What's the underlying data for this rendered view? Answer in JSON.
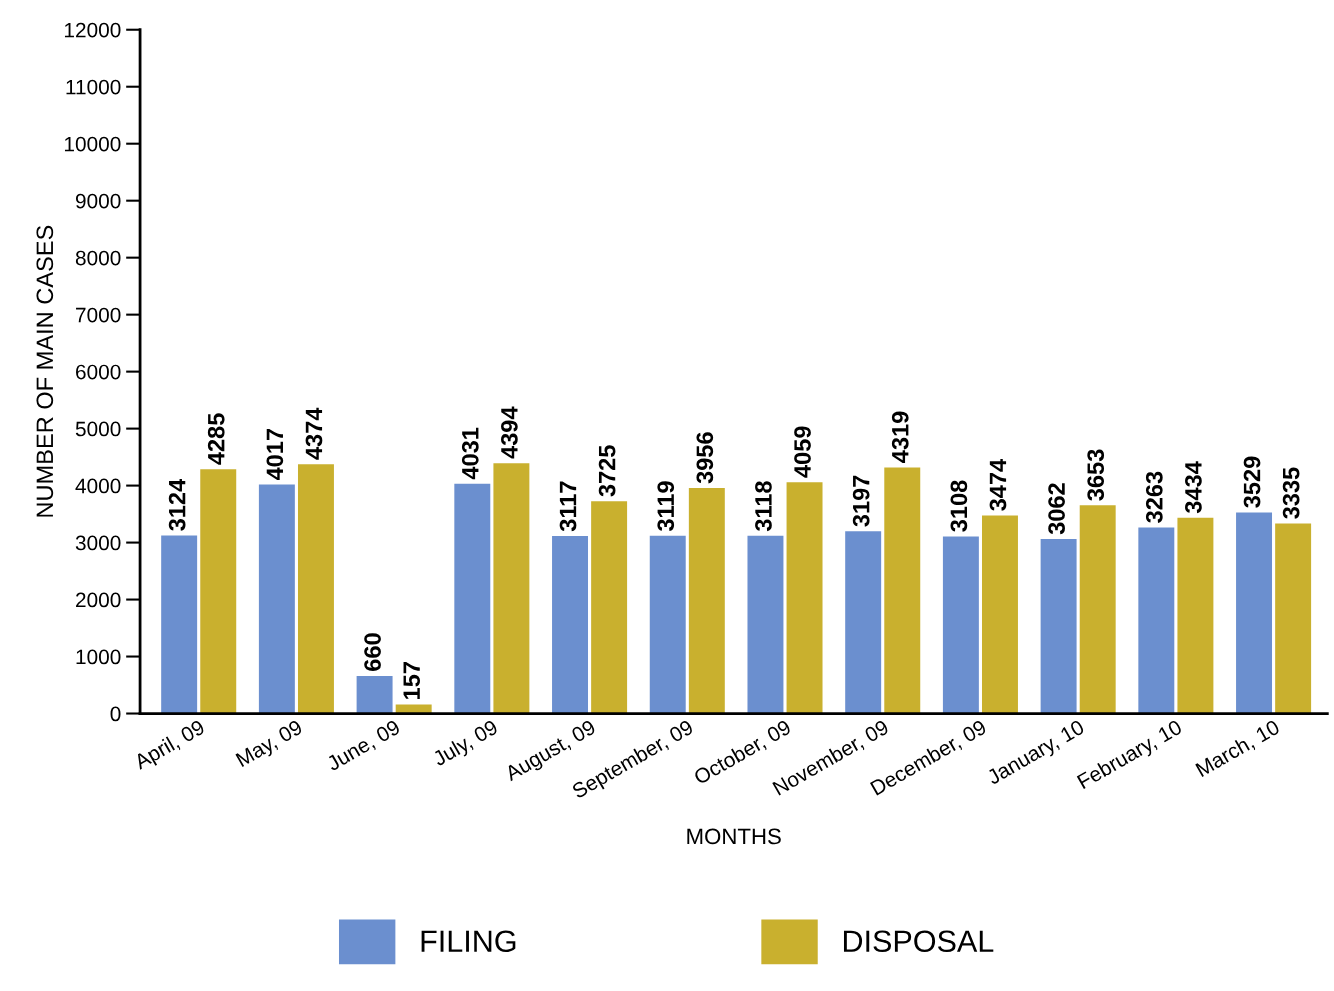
{
  "chart_data": {
    "type": "bar",
    "xlabel": "MONTHS",
    "ylabel": "NUMBER OF MAIN CASES",
    "categories": [
      "April, 09",
      "May, 09",
      "June, 09",
      "July, 09",
      "August, 09",
      "September, 09",
      "October, 09",
      "November, 09",
      "December, 09",
      "January, 10",
      "February, 10",
      "March, 10"
    ],
    "series": [
      {
        "name": "FILING",
        "color": "#6b8fcf",
        "values": [
          3124,
          4017,
          660,
          4031,
          3117,
          3119,
          3118,
          3197,
          3108,
          3062,
          3263,
          3529
        ]
      },
      {
        "name": "DISPOSAL",
        "color": "#c9b02e",
        "values": [
          4285,
          4374,
          157,
          4394,
          3725,
          3956,
          4059,
          4319,
          3474,
          3653,
          3434,
          3335
        ]
      }
    ],
    "ylim": [
      0,
      12000
    ],
    "yticks": [
      0,
      1000,
      2000,
      3000,
      4000,
      5000,
      6000,
      7000,
      8000,
      9000,
      10000,
      11000,
      12000
    ],
    "data_labels": true,
    "grid": false,
    "legend": "bottom"
  }
}
